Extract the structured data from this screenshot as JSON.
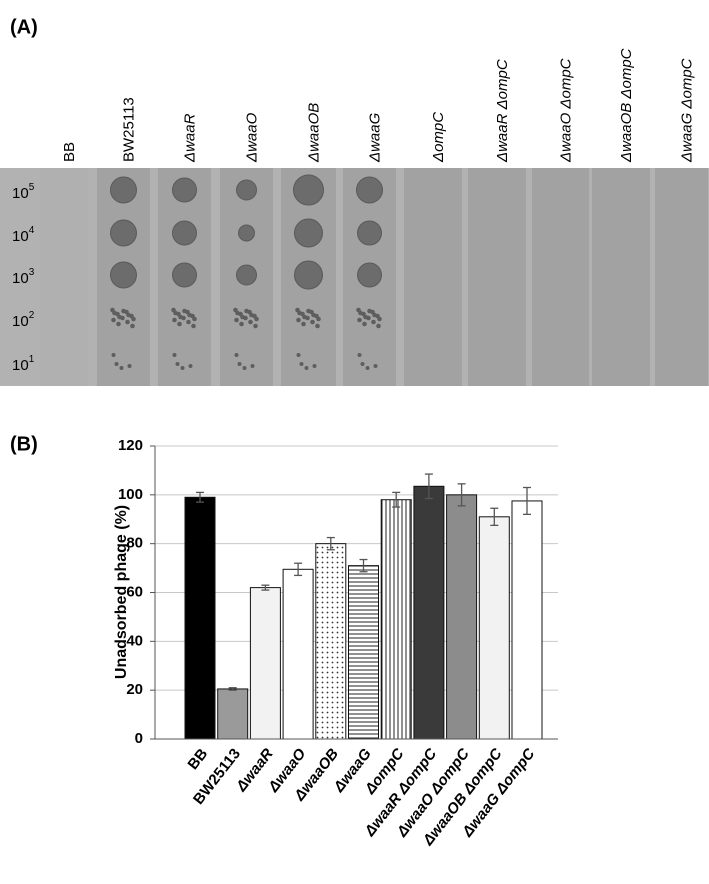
{
  "panel_a": {
    "label": "(A)",
    "strains": [
      "BB",
      "BW25113",
      "ΔwaaR",
      "ΔwaaO",
      "ΔwaaOB",
      "ΔwaaG",
      "ΔompC",
      "ΔwaaR ΔompC",
      "ΔwaaO ΔompC",
      "ΔwaaOB ΔompC",
      "ΔwaaG ΔompC"
    ],
    "dilutions": [
      {
        "base": "10",
        "exp": "5"
      },
      {
        "base": "10",
        "exp": "4"
      },
      {
        "base": "10",
        "exp": "3"
      },
      {
        "base": "10",
        "exp": "2"
      },
      {
        "base": "10",
        "exp": "1"
      }
    ]
  },
  "chart_data": {
    "type": "bar",
    "label": "(B)",
    "y_label": "Unadsorbed phage (%)",
    "categories": [
      "BB",
      "BW25113",
      "ΔwaaR",
      "ΔwaaO",
      "ΔwaaOB",
      "ΔwaaG",
      "ΔompC",
      "ΔwaaR ΔompC",
      "ΔwaaO ΔompC",
      "ΔwaaOB ΔompC",
      "ΔwaaG ΔompC"
    ],
    "values": [
      99,
      20.5,
      62,
      69.5,
      80,
      71,
      98,
      103.5,
      100,
      91,
      97.5
    ],
    "errors": [
      2,
      0.5,
      1,
      2.5,
      2.5,
      2.5,
      3,
      5,
      4.5,
      3.5,
      5.5
    ],
    "fills": [
      "#000000",
      "#9a9a9a",
      "#f2f2f2",
      "#ffffff",
      "dots",
      "hlines",
      "vlines",
      "#3a3a3a",
      "#8c8c8c",
      "#f2f2f2",
      "#ffffff"
    ],
    "ylim": [
      0,
      120
    ],
    "yticks": [
      0,
      20,
      40,
      60,
      80,
      100,
      120
    ],
    "grid": true
  }
}
